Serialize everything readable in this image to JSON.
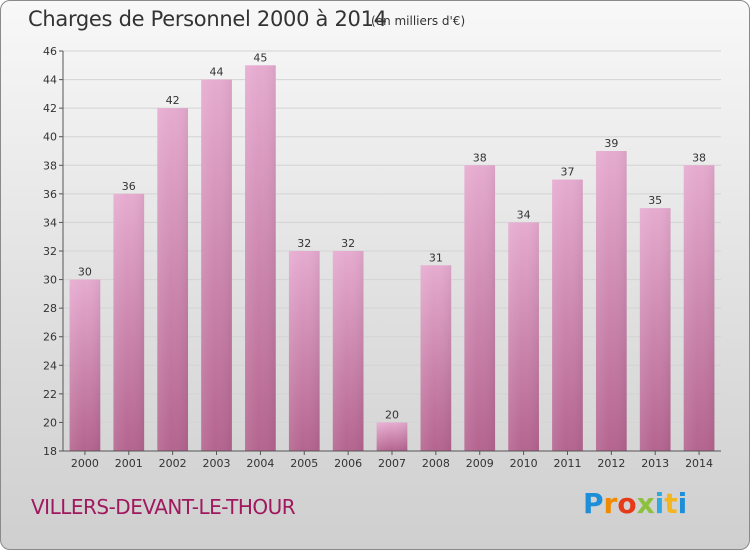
{
  "header": {
    "title": "Charges de Personnel 2000 à 2014",
    "subtitle": "(en milliers d'€)"
  },
  "footer": {
    "commune": "VILLERS-DEVANT-LE-THOUR",
    "logo": [
      "P",
      "r",
      "o",
      "x",
      "i",
      "t",
      "i"
    ]
  },
  "colors": {
    "bar_top": "#e6abd0",
    "bar_bottom": "#b4648f",
    "commune": "#a0185d"
  },
  "chart_data": {
    "type": "bar",
    "title": "Charges de Personnel 2000 à 2014",
    "subtitle": "(en milliers d'€)",
    "categories": [
      "2000",
      "2001",
      "2002",
      "2003",
      "2004",
      "2005",
      "2006",
      "2007",
      "2008",
      "2009",
      "2010",
      "2011",
      "2012",
      "2013",
      "2014"
    ],
    "values": [
      30,
      36,
      42,
      44,
      45,
      32,
      32,
      20,
      31,
      38,
      34,
      37,
      39,
      35,
      38
    ],
    "ylim": [
      18,
      46
    ],
    "yticks": [
      18,
      20,
      22,
      24,
      26,
      28,
      30,
      32,
      34,
      36,
      38,
      40,
      42,
      44,
      46
    ],
    "grid": true,
    "legend": "none"
  }
}
